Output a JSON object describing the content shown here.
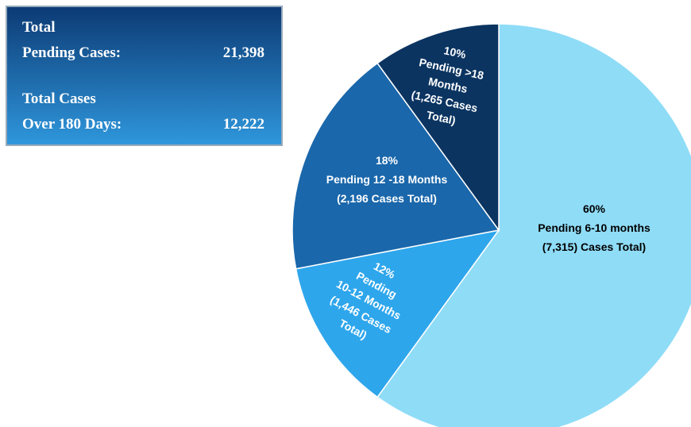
{
  "chart_data": {
    "type": "pie",
    "values": [
      60,
      12,
      18,
      10
    ],
    "value_labels": [
      "60%",
      "12%",
      "18%",
      "10%"
    ],
    "labels": [
      [
        "Pending 6-10 months",
        "(7,315) Cases Total)"
      ],
      [
        "Pending",
        "10-12 Months",
        "(1,446 Cases",
        "Total)"
      ],
      [
        "Pending 12 -18 Months",
        "(2,196 Cases Total)"
      ],
      [
        "Pending >18",
        "Months",
        "(1,265 Cases",
        "Total)"
      ]
    ],
    "colors": [
      "#8fdcf7",
      "#2ea6ec",
      "#1a67ab",
      "#0b3461"
    ]
  },
  "summary": [
    {
      "label_lines": [
        "Total",
        "Pending Cases:"
      ],
      "value": "21,398"
    },
    {
      "label_lines": [
        "Total Cases",
        "Over 180 Days:"
      ],
      "value": "12,222"
    }
  ]
}
